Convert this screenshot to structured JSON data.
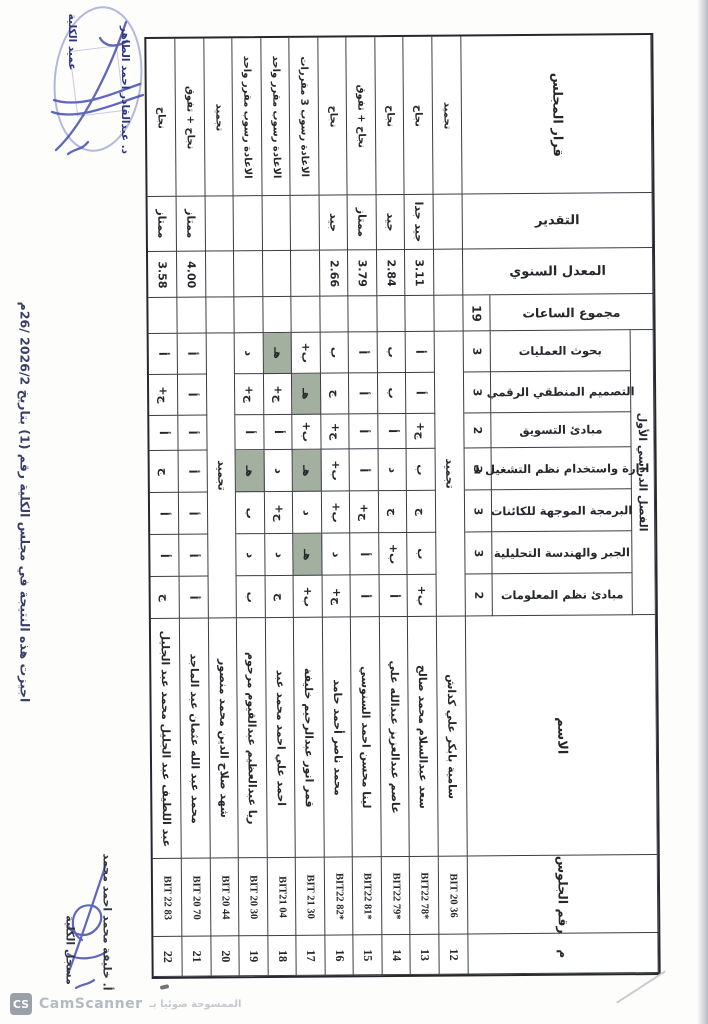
{
  "page": {
    "footer_note": "اجيزت هذه النتيجة في مجلس الكلية رقم (1) بتاريخ 2026/2 /26م",
    "stamp_top": {
      "line1": "د. عبدالقادر احمد الطاهر",
      "line2": "عميد الكلية"
    },
    "signature_bottom": {
      "line1": "أ. خليفة محمد احمد محمد",
      "line2": "مسجل الكلية"
    },
    "watermark": {
      "logo": "CS",
      "brand": "CamScanner",
      "arabic": "الممسوحة ضوئيا بـ"
    }
  },
  "table": {
    "headers": {
      "decision": "قرار المجلس",
      "taqdir": "التقدير",
      "gpa": "المعدل السنوي",
      "total_hours": "مجموع الساعات",
      "total_hours_value": "19",
      "semester": "الفصل الدراسي الأول",
      "name": "الاسم",
      "seat": "رقم الجلوس",
      "serial": "م"
    },
    "subjects": [
      {
        "label": "بحوث العمليات",
        "hours": "3"
      },
      {
        "label": "التصميم المنطقي الرقمي",
        "hours": "3"
      },
      {
        "label": "مبادئ التسويق",
        "hours": "2"
      },
      {
        "label": "ادارة واستخدام نظم التشغيل 1",
        "hours": "3"
      },
      {
        "label": "البرمجة الموجهة للكائنات",
        "hours": "3"
      },
      {
        "label": "الجبر والهندسة التحليلية",
        "hours": "3"
      },
      {
        "label": "مبادئ نظم المعلومات",
        "hours": "2"
      }
    ],
    "students": [
      {
        "num": "12",
        "seat": "BIT 20 36",
        "name": "سامية بابكر علي كداش",
        "merged": "تجميد",
        "grades": null,
        "fails": [],
        "gpa": "",
        "taqdir": "",
        "decision": "تجميد"
      },
      {
        "num": "13",
        "seat": "BIT22 78*",
        "name": "سعد عبدالسلام محمد صالح",
        "grades": [
          "أ",
          "أ",
          "ج+",
          "ب",
          "ج",
          "ب",
          "ب+"
        ],
        "fails": [],
        "gpa": "3.11",
        "taqdir": "جيد جدا",
        "decision": "نجاح"
      },
      {
        "num": "14",
        "seat": "BIT22 79*",
        "name": "عاصم عبدالعزيز عبدالله علي",
        "grades": [
          "ب",
          "ب",
          "أ",
          "د",
          "ج",
          "ب+",
          "أ"
        ],
        "fails": [],
        "gpa": "2.84",
        "taqdir": "جيد",
        "decision": "نجاح"
      },
      {
        "num": "15",
        "seat": "BIT22 81*",
        "name": "لينا محسن احمد السنوسي",
        "grades": [
          "أ",
          "أ",
          "أ",
          "أ",
          "ج+",
          "أ",
          "أ"
        ],
        "fails": [],
        "gpa": "3.79",
        "taqdir": "ممتاز",
        "decision": "نجاح + تفوق"
      },
      {
        "num": "16",
        "seat": "BIT22 82*",
        "name": "محمد ناصر أحمد حامد",
        "grades": [
          "ب",
          "ج",
          "ج+",
          "ب+",
          "ب+",
          "د",
          "ج+"
        ],
        "fails": [],
        "gpa": "2.66",
        "taqdir": "جيد",
        "decision": "نجاح"
      },
      {
        "num": "17",
        "seat": "BIT 21 30",
        "name": "قمر انور عبدالرحيم خليفة",
        "grades": [
          "ب+",
          "هـ",
          "ب+",
          "هـ",
          "د",
          "هـ",
          "ب+"
        ],
        "fails": [
          1,
          3,
          5
        ],
        "gpa": "",
        "taqdir": "",
        "decision": "الاعادة رسوب 3 مقررات"
      },
      {
        "num": "18",
        "seat": "BIT21 04",
        "name": "احمد علي احمد محمد عبد",
        "grades": [
          "هـ",
          "ج+",
          "أ",
          "د",
          "ج+",
          "د",
          "ج"
        ],
        "fails": [
          0
        ],
        "gpa": "",
        "taqdir": "",
        "decision": "الاعادة رسوب مقرر واحد"
      },
      {
        "num": "19",
        "seat": "BIT 20 30",
        "name": "ريا عبدالعظيم عبدالقيوم مرحوم",
        "grades": [
          "د",
          "ج+",
          "أ",
          "هـ",
          "ب",
          "د",
          "ب"
        ],
        "fails": [
          3
        ],
        "gpa": "",
        "taqdir": "",
        "decision": "الاعادة رسوب مقرر واحد"
      },
      {
        "num": "20",
        "seat": "BIT 20 44",
        "name": "شهد صلاح الدين محمد منصور",
        "merged": "تجميد",
        "grades": null,
        "fails": [],
        "gpa": "",
        "taqdir": "",
        "decision": "تجميد"
      },
      {
        "num": "21",
        "seat": "BIT 20 70",
        "name": "محمد عبد الله عثمان عبد الماجد",
        "grades": [
          "أ",
          "أ",
          "أ",
          "أ",
          "أ",
          "أ",
          "أ"
        ],
        "fails": [],
        "gpa": "4.00",
        "taqdir": "ممتاز",
        "decision": "نجاح + تفوق"
      },
      {
        "num": "22",
        "seat": "BIT 22 83",
        "name": "عبد اللطيف عبد الجليل محمد عبد الجليل",
        "grades": [
          "أ",
          "ج+",
          "أ",
          "ج",
          "أ",
          "أ",
          "ج"
        ],
        "fails": [],
        "gpa": "3.58",
        "taqdir": "ممتاز",
        "decision": "نجاح"
      }
    ],
    "colors": {
      "fail_highlight": "#a3b09f",
      "ink": "#26272b",
      "stamp_blue": "#3f47ad"
    }
  }
}
